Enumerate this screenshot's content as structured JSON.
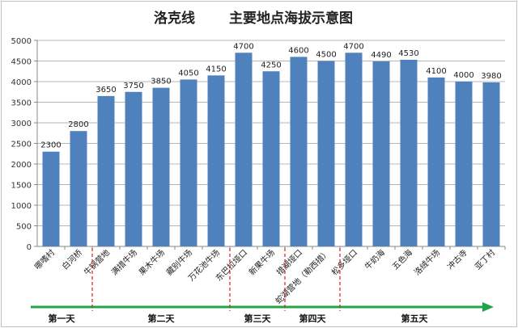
{
  "chart_data": {
    "type": "bar",
    "title_left": "洛克线",
    "title_right": "主要地点海拔示意图",
    "categories": [
      "哪嗜村",
      "白河桥",
      "牛锅营地",
      "满措牛场",
      "果木牛场",
      "藏别牛场",
      "万花池牛场",
      "东巴拉垭口",
      "新果牛场",
      "措湖垭口",
      "蛇湖营地（勒西措）",
      "松多垭口",
      "牛奶海",
      "五色海",
      "洛绒牛场",
      "冲古寺",
      "亚丁村"
    ],
    "values": [
      2300,
      2800,
      3650,
      3750,
      3850,
      4050,
      4150,
      4700,
      4250,
      4600,
      4500,
      4700,
      4490,
      4530,
      4100,
      4000,
      3980
    ],
    "ylim": [
      0,
      5000
    ],
    "yticks": [
      0,
      500,
      1000,
      1500,
      2000,
      2500,
      3000,
      3500,
      4000,
      4500,
      5000
    ],
    "bar_color": "#4f81bd",
    "grid": true,
    "timeline": {
      "color": "#22a44a",
      "divider_color": "#e31a1c",
      "days": [
        "第一天",
        "第二天",
        "第三天",
        "第四天",
        "第五天"
      ],
      "day_boundaries_after_index": [
        1,
        6,
        8,
        10
      ]
    }
  }
}
